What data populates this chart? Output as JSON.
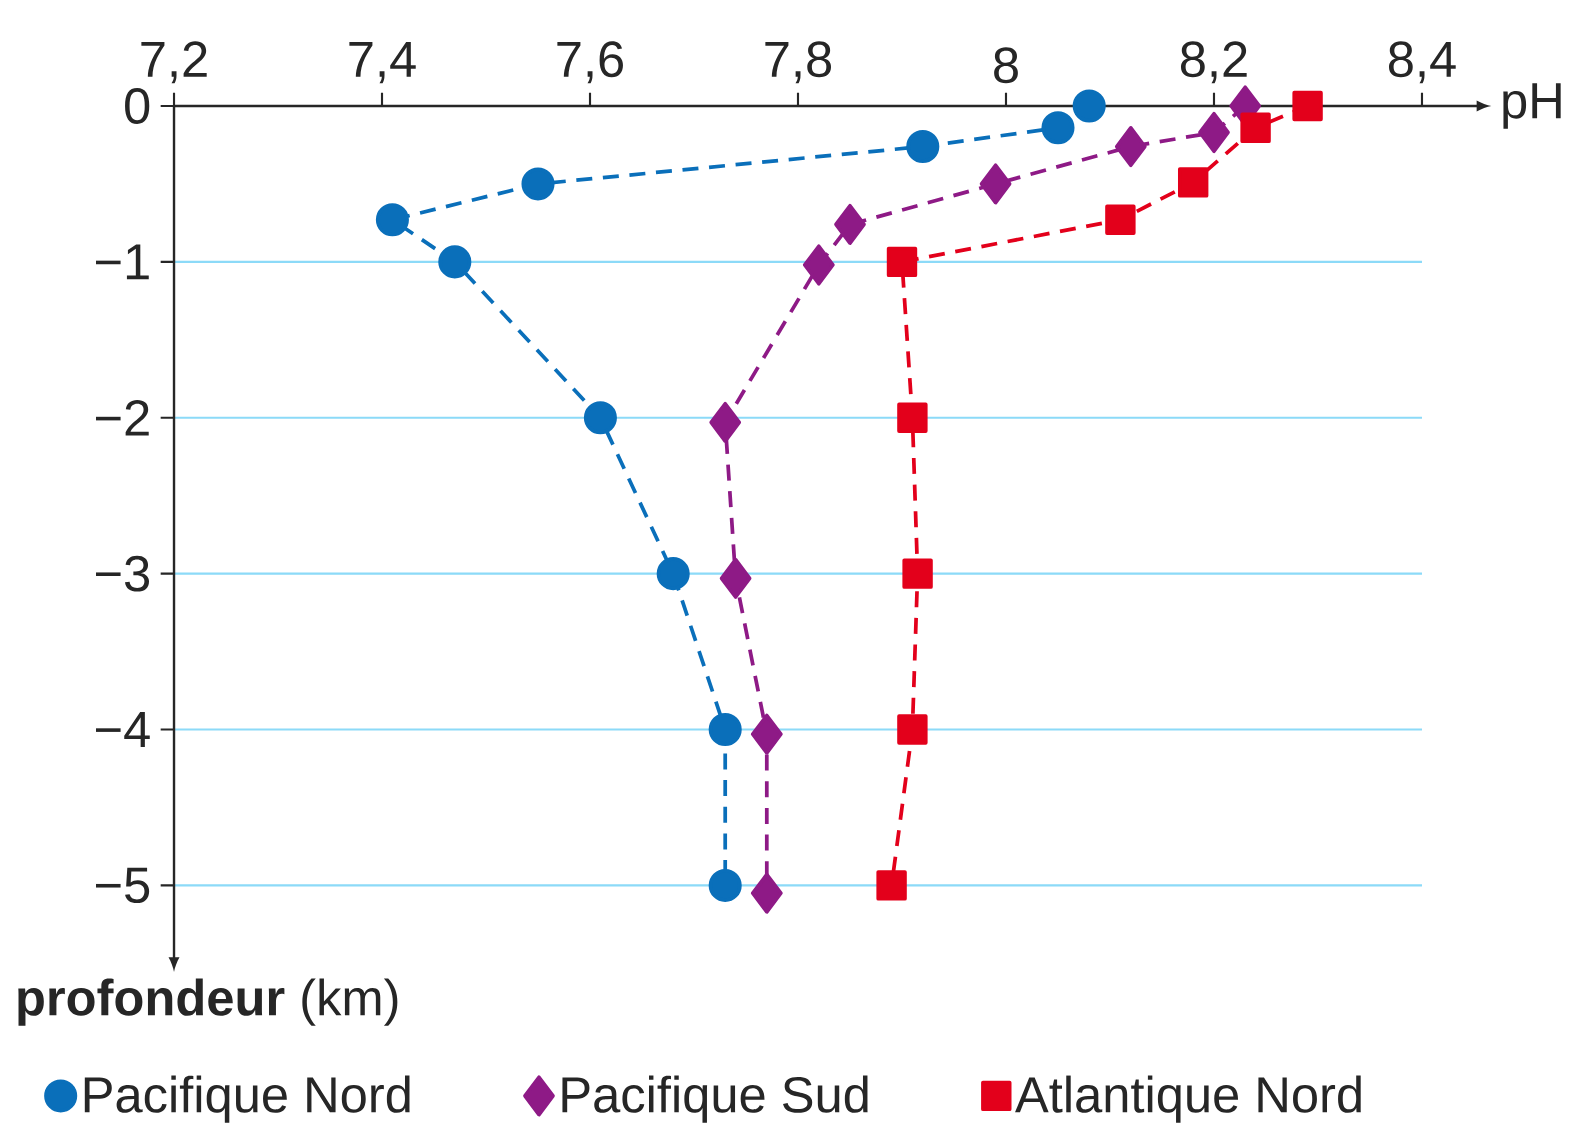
{
  "chart_data": {
    "type": "line",
    "xlabel": "pH",
    "ylabel": "**profondeur** (km)",
    "xlim": [
      7.2,
      8.4
    ],
    "ylim": [
      -5.35,
      0
    ],
    "xticks": [
      {
        "value": 7.2,
        "label": "7,2"
      },
      {
        "value": 7.4,
        "label": "7,4"
      },
      {
        "value": 7.6,
        "label": "7,6"
      },
      {
        "value": 7.8,
        "label": "7,8"
      },
      8,
      {
        "value": 8.2,
        "label": "8,2"
      },
      {
        "value": 8.4,
        "label": "8,4"
      }
    ],
    "yticks": [
      0,
      {
        "value": -1,
        "label": "−1"
      },
      {
        "value": -2,
        "label": "−2"
      },
      {
        "value": -3,
        "label": "−3"
      },
      {
        "value": -4,
        "label": "−4"
      },
      {
        "value": -5,
        "label": "−5"
      }
    ],
    "grid": "y",
    "legend": "bottom",
    "line_style": "dashed",
    "series": [
      {
        "name": "Pacifique Nord",
        "color": "#0a6fba",
        "marker": "circle",
        "x": [
          8.08,
          8.05,
          7.92,
          7.55,
          7.41,
          7.47,
          7.61,
          7.68,
          7.73,
          7.73
        ],
        "values": [
          0,
          -0.14,
          -0.26,
          -0.5,
          -0.73,
          -1,
          -2,
          -3,
          -4,
          -5
        ]
      },
      {
        "name": "Pacifique Sud",
        "color": "#8e1a86",
        "marker": "diamond",
        "x": [
          8.23,
          8.2,
          8.12,
          7.99,
          7.85,
          7.82,
          7.73,
          7.74,
          7.77,
          7.77
        ],
        "values": [
          0,
          -0.17,
          -0.26,
          -0.5,
          -0.76,
          -1.02,
          -2.03,
          -3.03,
          -4.03,
          -5.05
        ]
      },
      {
        "name": "Atlantique Nord",
        "color": "#e3001b",
        "marker": "square",
        "x": [
          8.29,
          8.24,
          8.18,
          8.11,
          7.9,
          7.91,
          7.915,
          7.91,
          7.89
        ],
        "values": [
          0,
          -0.14,
          -0.49,
          -0.73,
          -1,
          -2,
          -3,
          -4,
          -5
        ]
      }
    ]
  }
}
